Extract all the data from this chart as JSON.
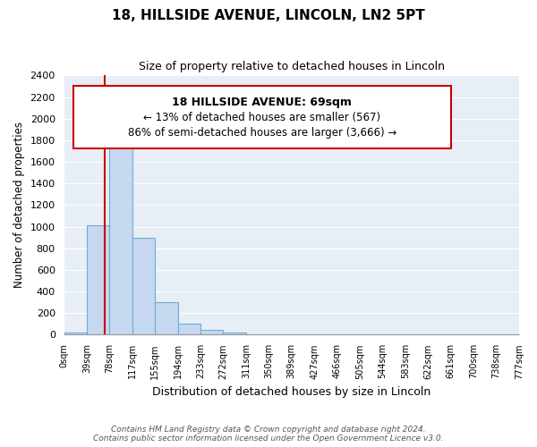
{
  "title": "18, HILLSIDE AVENUE, LINCOLN, LN2 5PT",
  "subtitle": "Size of property relative to detached houses in Lincoln",
  "xlabel": "Distribution of detached houses by size in Lincoln",
  "ylabel": "Number of detached properties",
  "bin_labels": [
    "0sqm",
    "39sqm",
    "78sqm",
    "117sqm",
    "155sqm",
    "194sqm",
    "233sqm",
    "272sqm",
    "311sqm",
    "350sqm",
    "389sqm",
    "427sqm",
    "466sqm",
    "505sqm",
    "544sqm",
    "583sqm",
    "622sqm",
    "661sqm",
    "700sqm",
    "738sqm",
    "777sqm"
  ],
  "bar_heights": [
    20,
    1010,
    1860,
    900,
    300,
    100,
    45,
    20,
    0,
    0,
    0,
    0,
    0,
    0,
    0,
    0,
    0,
    0,
    0,
    0
  ],
  "bar_color": "#c5d8ef",
  "bar_edge_color": "#6aaed6",
  "ylim": [
    0,
    2400
  ],
  "yticks": [
    0,
    200,
    400,
    600,
    800,
    1000,
    1200,
    1400,
    1600,
    1800,
    2000,
    2200,
    2400
  ],
  "vline_x": 1.77,
  "vline_color": "#cc0000",
  "annotation_title": "18 HILLSIDE AVENUE: 69sqm",
  "annotation_line1": "← 13% of detached houses are smaller (567)",
  "annotation_line2": "86% of semi-detached houses are larger (3,666) →",
  "footer_line1": "Contains HM Land Registry data © Crown copyright and database right 2024.",
  "footer_line2": "Contains public sector information licensed under the Open Government Licence v3.0.",
  "background_color": "#e8eef5",
  "plot_background": "#ffffff",
  "grid_color": "#ffffff"
}
